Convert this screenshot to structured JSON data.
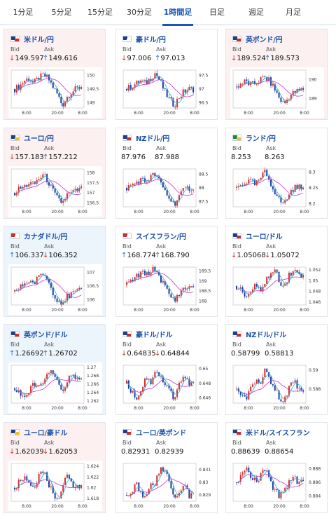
{
  "tabs": [
    {
      "label": "1分足",
      "active": false
    },
    {
      "label": "5分足",
      "active": false
    },
    {
      "label": "15分足",
      "active": false
    },
    {
      "label": "30分足",
      "active": false
    },
    {
      "label": "1時間足",
      "active": true
    },
    {
      "label": "日足",
      "active": false
    },
    {
      "label": "週足",
      "active": false
    },
    {
      "label": "月足",
      "active": false
    }
  ],
  "labels": {
    "bid": "Bid",
    "ask": "Ask"
  },
  "colors": {
    "down_arrow": "#d12d2d",
    "up_arrow": "#1d72c5",
    "down_card_bg": "#fdf0f1",
    "up_card_bg": "#edf5fc",
    "pair_text": "#1a4fa8",
    "candle_up": "#d12d2d",
    "candle_down": "#1a3fa3",
    "ma_line": "#cc33cc",
    "ma_line_2": "#33aacc"
  },
  "x_ticks": [
    "8:00",
    "20:00",
    "8:00"
  ],
  "cards": [
    {
      "pair": "米ドル/円",
      "flag": "us-flag",
      "bid": "149.597",
      "ask": "149.616",
      "bid_dir": "down",
      "ask_dir": "up",
      "card_state": "down",
      "y_ticks": [
        "150",
        "149.5",
        "149"
      ],
      "ylim": [
        148.8,
        150.2
      ],
      "shape": [
        149.5,
        149.6,
        149.8,
        149.9,
        149.7,
        149.9,
        150.0,
        149.9,
        149.6,
        149.3,
        148.9,
        149.2,
        149.4,
        149.5,
        149.6
      ]
    },
    {
      "pair": "豪ドル/円",
      "flag": "au-flag",
      "bid": "97.006",
      "ask": "97.013",
      "bid_dir": "down",
      "ask_dir": "up",
      "card_state": "none",
      "y_ticks": [
        "97.5",
        "97",
        "96.5"
      ],
      "ylim": [
        96.3,
        97.7
      ],
      "shape": [
        97.0,
        97.1,
        97.2,
        97.3,
        97.2,
        97.4,
        97.6,
        97.3,
        96.9,
        96.6,
        96.4,
        96.7,
        96.9,
        97.0,
        97.0
      ]
    },
    {
      "pair": "英ポンド/円",
      "flag": "uk-flag",
      "bid": "189.524",
      "ask": "189.573",
      "bid_dir": "down",
      "ask_dir": "up",
      "card_state": "down",
      "y_ticks": [
        "190",
        "189"
      ],
      "ylim": [
        188.5,
        190.5
      ],
      "shape": [
        189.6,
        189.8,
        189.9,
        189.7,
        189.8,
        190.0,
        190.1,
        189.9,
        189.5,
        189.0,
        188.7,
        189.1,
        189.3,
        189.4,
        189.5
      ]
    },
    {
      "pair": "ユーロ/円",
      "flag": "eu-flag",
      "bid": "157.183",
      "ask": "157.212",
      "bid_dir": "down",
      "ask_dir": "up",
      "card_state": "down",
      "y_ticks": [
        "158",
        "157.5",
        "157",
        "156.5"
      ],
      "ylim": [
        156.3,
        158.2
      ],
      "shape": [
        157.0,
        157.2,
        157.3,
        157.5,
        157.4,
        157.7,
        157.9,
        157.6,
        157.1,
        156.7,
        156.5,
        156.9,
        157.0,
        157.1,
        157.2
      ]
    },
    {
      "pair": "NZドル/円",
      "flag": "nz-flag",
      "bid": "87.976",
      "ask": "87.988",
      "bid_dir": "none",
      "ask_dir": "none",
      "card_state": "none",
      "y_ticks": [
        "88.5",
        "88",
        "87.5"
      ],
      "ylim": [
        87.3,
        88.7
      ],
      "shape": [
        88.0,
        88.1,
        88.2,
        88.3,
        88.2,
        88.4,
        88.5,
        88.2,
        87.9,
        87.6,
        87.4,
        87.7,
        87.9,
        88.0,
        88.0
      ]
    },
    {
      "pair": "ランド/円",
      "flag": "za-flag",
      "bid": "8.253",
      "ask": "8.263",
      "bid_dir": "none",
      "ask_dir": "none",
      "card_state": "none",
      "y_ticks": [
        "8.3",
        "8.25",
        "8.2"
      ],
      "ylim": [
        8.19,
        8.31
      ],
      "shape": [
        8.25,
        8.26,
        8.27,
        8.27,
        8.26,
        8.28,
        8.3,
        8.27,
        8.24,
        8.21,
        8.2,
        8.23,
        8.25,
        8.25,
        8.26
      ]
    },
    {
      "pair": "カナダドル/円",
      "flag": "ca-flag",
      "bid": "106.337",
      "ask": "106.352",
      "bid_dir": "up",
      "ask_dir": "down",
      "card_state": "up",
      "y_ticks": [
        "107",
        "106.5",
        "106"
      ],
      "ylim": [
        105.8,
        107.2
      ],
      "shape": [
        106.3,
        106.4,
        106.6,
        106.7,
        106.6,
        106.8,
        107.0,
        106.7,
        106.3,
        106.0,
        105.9,
        106.1,
        106.2,
        106.3,
        106.3
      ]
    },
    {
      "pair": "スイスフラン/円",
      "flag": "ch-flag",
      "bid": "168.774",
      "ask": "168.790",
      "bid_dir": "up",
      "ask_dir": "up",
      "card_state": "none",
      "y_ticks": [
        "169.5",
        "169",
        "168.5",
        "168"
      ],
      "ylim": [
        167.8,
        169.7
      ],
      "shape": [
        168.8,
        169.0,
        169.2,
        169.4,
        169.3,
        169.5,
        169.6,
        169.2,
        168.7,
        168.3,
        168.0,
        168.4,
        168.6,
        168.7,
        168.8
      ]
    },
    {
      "pair": "ユーロ/ドル",
      "flag": "eu-us-flag",
      "bid": "1.05068",
      "ask": "1.05072",
      "bid_dir": "down",
      "ask_dir": "down",
      "card_state": "none",
      "y_ticks": [
        "1.052",
        "1.05",
        "1.048",
        "1.046"
      ],
      "ylim": [
        1.0455,
        1.0525
      ],
      "shape": [
        1.049,
        1.048,
        1.047,
        1.048,
        1.049,
        1.048,
        1.05,
        1.051,
        1.052,
        1.05,
        1.049,
        1.051,
        1.052,
        1.051,
        1.051
      ]
    },
    {
      "pair": "英ポンド/ドル",
      "flag": "uk-us-flag",
      "bid": "1.26692",
      "ask": "1.26702",
      "bid_dir": "up",
      "ask_dir": "up",
      "card_state": "up",
      "y_ticks": [
        "1.27",
        "1.268",
        "1.266",
        "1.264",
        "1.262"
      ],
      "ylim": [
        1.2615,
        1.2705
      ],
      "shape": [
        1.265,
        1.264,
        1.263,
        1.264,
        1.266,
        1.265,
        1.267,
        1.268,
        1.269,
        1.266,
        1.264,
        1.267,
        1.268,
        1.267,
        1.267
      ]
    },
    {
      "pair": "豪ドル/ドル",
      "flag": "au-us-flag",
      "bid": "0.64835",
      "ask": "0.64844",
      "bid_dir": "down",
      "ask_dir": "down",
      "card_state": "none",
      "y_ticks": [
        "0.65",
        "0.648",
        "0.646"
      ],
      "ylim": [
        0.6453,
        0.6505
      ],
      "shape": [
        0.648,
        0.647,
        0.646,
        0.647,
        0.649,
        0.648,
        0.65,
        0.649,
        0.648,
        0.647,
        0.646,
        0.648,
        0.649,
        0.648,
        0.648
      ]
    },
    {
      "pair": "NZドル/ドル",
      "flag": "nz-us-flag",
      "bid": "0.58799",
      "ask": "0.58813",
      "bid_dir": "none",
      "ask_dir": "none",
      "card_state": "none",
      "y_ticks": [
        "0.59",
        "0.588"
      ],
      "ylim": [
        0.5865,
        0.5905
      ],
      "shape": [
        0.588,
        0.587,
        0.587,
        0.588,
        0.589,
        0.588,
        0.59,
        0.589,
        0.588,
        0.587,
        0.587,
        0.588,
        0.589,
        0.588,
        0.588
      ]
    },
    {
      "pair": "ユーロ/豪ドル",
      "flag": "eu-au-flag",
      "bid": "1.62039",
      "ask": "1.62053",
      "bid_dir": "down",
      "ask_dir": "down",
      "card_state": "down",
      "y_ticks": [
        "1.624",
        "1.622",
        "1.62",
        "1.618"
      ],
      "ylim": [
        1.6175,
        1.6245
      ],
      "shape": [
        1.62,
        1.621,
        1.622,
        1.621,
        1.62,
        1.622,
        1.623,
        1.621,
        1.619,
        1.618,
        1.62,
        1.622,
        1.621,
        1.62,
        1.62
      ]
    },
    {
      "pair": "ユーロ/英ポンド",
      "flag": "eu-uk-flag",
      "bid": "0.82931",
      "ask": "0.82939",
      "bid_dir": "none",
      "ask_dir": "none",
      "card_state": "none",
      "y_ticks": [
        "0.831",
        "0.83",
        "0.829"
      ],
      "ylim": [
        0.8285,
        0.8315
      ],
      "shape": [
        0.829,
        0.829,
        0.83,
        0.829,
        0.829,
        0.83,
        0.83,
        0.831,
        0.831,
        0.83,
        0.829,
        0.829,
        0.83,
        0.829,
        0.829
      ]
    },
    {
      "pair": "米ドル/スイスフラン",
      "flag": "us-ch-flag",
      "bid": "0.88639",
      "ask": "0.88654",
      "bid_dir": "none",
      "ask_dir": "none",
      "card_state": "none",
      "y_ticks": [
        "0.888",
        "0.886",
        "0.884"
      ],
      "ylim": [
        0.8832,
        0.8888
      ],
      "shape": [
        0.886,
        0.887,
        0.888,
        0.887,
        0.886,
        0.887,
        0.888,
        0.886,
        0.885,
        0.884,
        0.885,
        0.886,
        0.887,
        0.886,
        0.886
      ]
    }
  ]
}
